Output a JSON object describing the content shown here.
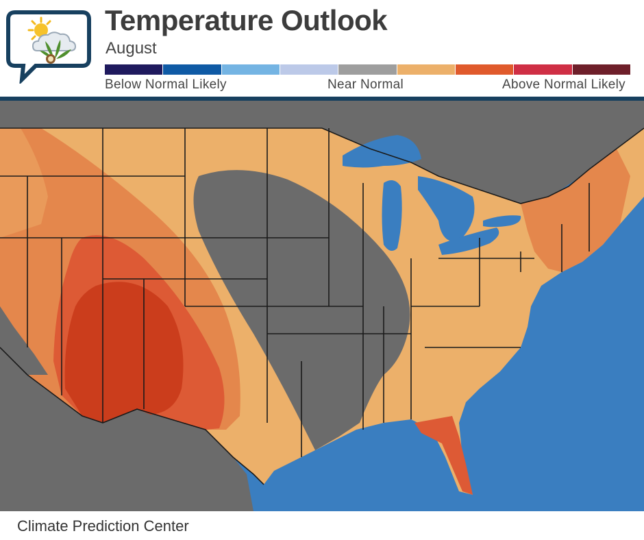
{
  "header": {
    "title": "Temperature Outlook",
    "subtitle": "August"
  },
  "legend": {
    "swatches": [
      {
        "name": "much-below",
        "color": "#1f1a5e"
      },
      {
        "name": "below-strong",
        "color": "#0f5aa5"
      },
      {
        "name": "below-moderate",
        "color": "#74b4e3"
      },
      {
        "name": "below-slight",
        "color": "#bcc9e8"
      },
      {
        "name": "near-normal",
        "color": "#9e9e9e"
      },
      {
        "name": "above-slight",
        "color": "#ecb06a"
      },
      {
        "name": "above-moderate",
        "color": "#e05a2c"
      },
      {
        "name": "above-strong",
        "color": "#cf2f45"
      },
      {
        "name": "much-above",
        "color": "#6e1f2a"
      }
    ],
    "label_left": "Below Normal Likely",
    "label_mid": "Near Normal",
    "label_right": "Above Normal Likely"
  },
  "map_colors": {
    "ocean": "#3a7ec0",
    "land_neutral": "#6b6b6b",
    "great_lakes": "#3a7ec0",
    "above_slight": "#ecb06a",
    "above_light2": "#e99a5a",
    "above_moderate": "#e4874c",
    "above_strong": "#dd5a35",
    "above_core": "#cb3d1c",
    "borders": "#1a1a1a"
  },
  "footer": {
    "source": "Climate Prediction Center"
  }
}
